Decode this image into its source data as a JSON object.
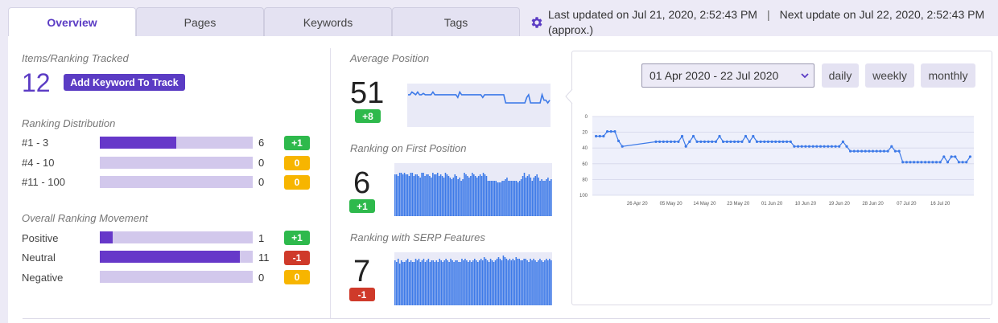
{
  "tabs": [
    {
      "label": "Overview",
      "active": true
    },
    {
      "label": "Pages",
      "active": false
    },
    {
      "label": "Keywords",
      "active": false
    },
    {
      "label": "Tags",
      "active": false
    }
  ],
  "update_info": {
    "icon": "gear-icon",
    "last_updated": "Last updated on Jul 21, 2020, 2:52:43 PM",
    "separator": "|",
    "next_update": "Next update on Jul 22, 2020, 2:52:43 PM (approx.)"
  },
  "colors": {
    "accent": "#5b3cc4",
    "bar_fill": "#6638c9",
    "bar_track": "#d2c8ec",
    "positive": "#2eb94c",
    "neutral": "#f7b500",
    "negative": "#cf3a2a",
    "spark": "#3d7ae8"
  },
  "tracked": {
    "title": "Items/Ranking Tracked",
    "count": "12",
    "add_button": "Add Keyword To Track"
  },
  "distribution": {
    "title": "Ranking Distribution",
    "rows": [
      {
        "label": "#1 - 3",
        "count": "6",
        "badge": "+1",
        "badge_type": "green",
        "fraction": 0.5
      },
      {
        "label": "#4 - 10",
        "count": "0",
        "badge": "0",
        "badge_type": "yellow",
        "fraction": 0
      },
      {
        "label": "#11 - 100",
        "count": "0",
        "badge": "0",
        "badge_type": "yellow",
        "fraction": 0
      }
    ]
  },
  "movement": {
    "title": "Overall Ranking Movement",
    "rows": [
      {
        "label": "Positive",
        "count": "1",
        "badge": "+1",
        "badge_type": "green",
        "fraction": 0.083
      },
      {
        "label": "Neutral",
        "count": "11",
        "badge": "-1",
        "badge_type": "red",
        "fraction": 0.917
      },
      {
        "label": "Negative",
        "count": "0",
        "badge": "0",
        "badge_type": "yellow",
        "fraction": 0
      }
    ]
  },
  "metrics": {
    "average_position": {
      "title": "Average Position",
      "value": "51",
      "badge": "+8"
    },
    "first_position": {
      "title": "Ranking on First Position",
      "value": "6",
      "badge": "+1"
    },
    "serp_features": {
      "title": "Ranking with SERP Features",
      "value": "7",
      "badge": "-1"
    }
  },
  "sparklines": {
    "average_position": [
      22,
      22,
      20,
      21,
      22,
      20,
      22,
      22,
      21,
      22,
      22,
      22,
      22,
      20,
      22,
      22,
      22,
      22,
      22,
      22,
      22,
      22,
      22,
      22,
      22,
      22,
      24,
      20,
      22,
      22,
      22,
      22,
      22,
      22,
      22,
      22,
      22,
      22,
      22,
      24,
      22,
      22,
      22,
      22,
      22,
      22,
      22,
      22,
      22,
      22,
      22,
      28,
      28,
      28,
      28,
      28,
      28,
      28,
      28,
      28,
      28,
      28,
      24,
      22,
      28,
      28,
      28,
      28,
      28,
      28,
      22,
      26,
      26,
      28,
      26
    ],
    "first_position": [
      14,
      14,
      16,
      12,
      12,
      14,
      12,
      14,
      14,
      16,
      12,
      12,
      16,
      14,
      14,
      16,
      18,
      12,
      12,
      16,
      14,
      14,
      16,
      18,
      12,
      14,
      14,
      12,
      16,
      14,
      16,
      18,
      12,
      14,
      16,
      18,
      20,
      18,
      14,
      16,
      20,
      18,
      22,
      20,
      12,
      14,
      16,
      18,
      16,
      12,
      14,
      16,
      18,
      16,
      14,
      16,
      12,
      14,
      16,
      22,
      22,
      22,
      22,
      22,
      22,
      24,
      24,
      24,
      22,
      22,
      20,
      18,
      22,
      22,
      22,
      22,
      22,
      22,
      24,
      22,
      20,
      16,
      12,
      18,
      16,
      14,
      18,
      22,
      18,
      16,
      14,
      18,
      22,
      20,
      22,
      22,
      20,
      18,
      22,
      20
    ],
    "serp_features": [
      10,
      12,
      8,
      14,
      10,
      12,
      12,
      10,
      8,
      12,
      10,
      12,
      12,
      8,
      10,
      8,
      12,
      10,
      8,
      12,
      10,
      8,
      12,
      10,
      10,
      12,
      10,
      12,
      8,
      10,
      12,
      10,
      8,
      10,
      12,
      8,
      10,
      12,
      10,
      10,
      12,
      12,
      8,
      10,
      8,
      10,
      12,
      10,
      12,
      10,
      8,
      10,
      12,
      10,
      8,
      10,
      6,
      8,
      10,
      12,
      8,
      10,
      12,
      10,
      8,
      6,
      8,
      10,
      4,
      6,
      8,
      10,
      8,
      10,
      8,
      10,
      6,
      8,
      8,
      10,
      10,
      8,
      8,
      10,
      12,
      8,
      10,
      8,
      10,
      12,
      10,
      8,
      10,
      12,
      10,
      8,
      10,
      8,
      10
    ]
  },
  "chart_controls": {
    "date_range": "01 Apr 2020 - 22 Jul 2020",
    "daily": "daily",
    "weekly": "weekly",
    "monthly": "monthly"
  },
  "chart_data": {
    "type": "line",
    "title": "",
    "xlabel": "",
    "ylabel": "",
    "y_inverted": true,
    "ylim": [
      0,
      100
    ],
    "y_ticks": [
      "0",
      "20",
      "40",
      "60",
      "80",
      "100"
    ],
    "x_ticks": [
      "26 Apr 20",
      "05 May 20",
      "14 May 20",
      "23 May 20",
      "01 Jun 20",
      "10 Jun 20",
      "19 Jun 20",
      "28 Jun 20",
      "07 Jul 20",
      "16 Jul 20"
    ],
    "grid": true,
    "series": [
      {
        "points": [
          [
            "2020-04-15",
            25
          ],
          [
            "2020-04-16",
            25
          ],
          [
            "2020-04-17",
            25
          ],
          [
            "2020-04-18",
            19
          ],
          [
            "2020-04-19",
            19
          ],
          [
            "2020-04-20",
            19
          ],
          [
            "2020-04-21",
            31
          ],
          [
            "2020-04-22",
            38
          ],
          [
            "2020-05-01",
            32
          ],
          [
            "2020-05-02",
            32
          ],
          [
            "2020-05-03",
            32
          ],
          [
            "2020-05-04",
            32
          ],
          [
            "2020-05-05",
            32
          ],
          [
            "2020-05-06",
            32
          ],
          [
            "2020-05-07",
            32
          ],
          [
            "2020-05-08",
            25
          ],
          [
            "2020-05-09",
            38
          ],
          [
            "2020-05-10",
            32
          ],
          [
            "2020-05-11",
            25
          ],
          [
            "2020-05-12",
            32
          ],
          [
            "2020-05-13",
            32
          ],
          [
            "2020-05-14",
            32
          ],
          [
            "2020-05-15",
            32
          ],
          [
            "2020-05-16",
            32
          ],
          [
            "2020-05-17",
            32
          ],
          [
            "2020-05-18",
            25
          ],
          [
            "2020-05-19",
            32
          ],
          [
            "2020-05-20",
            32
          ],
          [
            "2020-05-21",
            32
          ],
          [
            "2020-05-22",
            32
          ],
          [
            "2020-05-23",
            32
          ],
          [
            "2020-05-24",
            32
          ],
          [
            "2020-05-25",
            25
          ],
          [
            "2020-05-26",
            32
          ],
          [
            "2020-05-27",
            25
          ],
          [
            "2020-05-28",
            32
          ],
          [
            "2020-05-29",
            32
          ],
          [
            "2020-05-30",
            32
          ],
          [
            "2020-05-31",
            32
          ],
          [
            "2020-06-01",
            32
          ],
          [
            "2020-06-02",
            32
          ],
          [
            "2020-06-03",
            32
          ],
          [
            "2020-06-04",
            32
          ],
          [
            "2020-06-05",
            32
          ],
          [
            "2020-06-06",
            32
          ],
          [
            "2020-06-07",
            38
          ],
          [
            "2020-06-08",
            38
          ],
          [
            "2020-06-09",
            38
          ],
          [
            "2020-06-10",
            38
          ],
          [
            "2020-06-11",
            38
          ],
          [
            "2020-06-12",
            38
          ],
          [
            "2020-06-13",
            38
          ],
          [
            "2020-06-14",
            38
          ],
          [
            "2020-06-15",
            38
          ],
          [
            "2020-06-16",
            38
          ],
          [
            "2020-06-17",
            38
          ],
          [
            "2020-06-18",
            38
          ],
          [
            "2020-06-19",
            38
          ],
          [
            "2020-06-20",
            32
          ],
          [
            "2020-06-21",
            38
          ],
          [
            "2020-06-22",
            44
          ],
          [
            "2020-06-23",
            44
          ],
          [
            "2020-06-24",
            44
          ],
          [
            "2020-06-25",
            44
          ],
          [
            "2020-06-26",
            44
          ],
          [
            "2020-06-27",
            44
          ],
          [
            "2020-06-28",
            44
          ],
          [
            "2020-06-29",
            44
          ],
          [
            "2020-06-30",
            44
          ],
          [
            "2020-07-01",
            44
          ],
          [
            "2020-07-02",
            44
          ],
          [
            "2020-07-03",
            38
          ],
          [
            "2020-07-04",
            44
          ],
          [
            "2020-07-05",
            44
          ],
          [
            "2020-07-06",
            58
          ],
          [
            "2020-07-07",
            58
          ],
          [
            "2020-07-08",
            58
          ],
          [
            "2020-07-09",
            58
          ],
          [
            "2020-07-10",
            58
          ],
          [
            "2020-07-11",
            58
          ],
          [
            "2020-07-12",
            58
          ],
          [
            "2020-07-13",
            58
          ],
          [
            "2020-07-14",
            58
          ],
          [
            "2020-07-15",
            58
          ],
          [
            "2020-07-16",
            58
          ],
          [
            "2020-07-17",
            51
          ],
          [
            "2020-07-18",
            58
          ],
          [
            "2020-07-19",
            51
          ],
          [
            "2020-07-20",
            51
          ],
          [
            "2020-07-21",
            58
          ],
          [
            "2020-07-22",
            58
          ],
          [
            "2020-07-23",
            58
          ],
          [
            "2020-07-24",
            51
          ]
        ]
      }
    ]
  }
}
